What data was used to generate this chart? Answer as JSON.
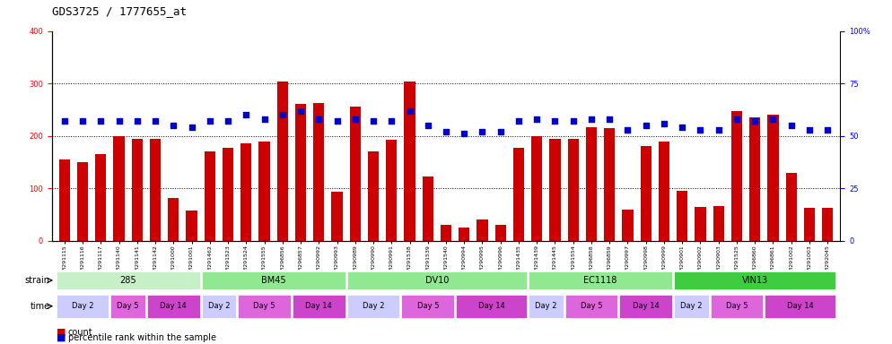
{
  "title": "GDS3725 / 1777655_at",
  "samples": [
    "GSM291115",
    "GSM291116",
    "GSM291117",
    "GSM291140",
    "GSM291141",
    "GSM291142",
    "GSM291000",
    "GSM291001",
    "GSM291462",
    "GSM291523",
    "GSM291524",
    "GSM291555",
    "GSM296856",
    "GSM296857",
    "GSM290992",
    "GSM290993",
    "GSM290989",
    "GSM290990",
    "GSM290991",
    "GSM291538",
    "GSM291539",
    "GSM291540",
    "GSM290994",
    "GSM290995",
    "GSM290996",
    "GSM291435",
    "GSM291439",
    "GSM291445",
    "GSM291554",
    "GSM296858",
    "GSM296859",
    "GSM290997",
    "GSM290998",
    "GSM290999",
    "GSM290901",
    "GSM290902",
    "GSM290903",
    "GSM291525",
    "GSM296860",
    "GSM296861",
    "GSM291002",
    "GSM291003",
    "GSM292045"
  ],
  "counts": [
    155,
    150,
    165,
    200,
    195,
    195,
    82,
    57,
    170,
    178,
    185,
    190,
    303,
    261,
    263,
    93,
    255,
    170,
    192,
    303,
    122,
    30,
    25,
    40,
    30,
    178,
    200,
    195,
    195,
    217,
    215,
    60,
    180,
    190,
    95,
    65,
    67,
    248,
    236,
    240,
    130,
    63,
    63
  ],
  "percentiles": [
    57,
    57,
    57,
    57,
    57,
    57,
    55,
    54,
    57,
    57,
    60,
    58,
    60,
    62,
    58,
    57,
    58,
    57,
    57,
    62,
    55,
    52,
    51,
    52,
    52,
    57,
    58,
    57,
    57,
    58,
    58,
    53,
    55,
    56,
    54,
    53,
    53,
    58,
    57,
    58,
    55,
    53,
    53
  ],
  "strains": [
    {
      "label": "285",
      "start": 0,
      "end": 8,
      "color": "#c8f0c8"
    },
    {
      "label": "BM45",
      "start": 8,
      "end": 16,
      "color": "#90e890"
    },
    {
      "label": "DV10",
      "start": 16,
      "end": 26,
      "color": "#90e890"
    },
    {
      "label": "EC1118",
      "start": 26,
      "end": 34,
      "color": "#90e890"
    },
    {
      "label": "VIN13",
      "start": 34,
      "end": 43,
      "color": "#40cc40"
    }
  ],
  "times": [
    {
      "label": "Day 2",
      "start": 0,
      "end": 3,
      "color": "#ccccff"
    },
    {
      "label": "Day 5",
      "start": 3,
      "end": 5,
      "color": "#dd66dd"
    },
    {
      "label": "Day 14",
      "start": 5,
      "end": 8,
      "color": "#cc44cc"
    },
    {
      "label": "Day 2",
      "start": 8,
      "end": 10,
      "color": "#ccccff"
    },
    {
      "label": "Day 5",
      "start": 10,
      "end": 13,
      "color": "#dd66dd"
    },
    {
      "label": "Day 14",
      "start": 13,
      "end": 16,
      "color": "#cc44cc"
    },
    {
      "label": "Day 2",
      "start": 16,
      "end": 19,
      "color": "#ccccff"
    },
    {
      "label": "Day 5",
      "start": 19,
      "end": 22,
      "color": "#dd66dd"
    },
    {
      "label": "Day 14",
      "start": 22,
      "end": 26,
      "color": "#cc44cc"
    },
    {
      "label": "Day 2",
      "start": 26,
      "end": 28,
      "color": "#ccccff"
    },
    {
      "label": "Day 5",
      "start": 28,
      "end": 31,
      "color": "#dd66dd"
    },
    {
      "label": "Day 14",
      "start": 31,
      "end": 34,
      "color": "#cc44cc"
    },
    {
      "label": "Day 2",
      "start": 34,
      "end": 36,
      "color": "#ccccff"
    },
    {
      "label": "Day 5",
      "start": 36,
      "end": 39,
      "color": "#dd66dd"
    },
    {
      "label": "Day 14",
      "start": 39,
      "end": 43,
      "color": "#cc44cc"
    }
  ],
  "bar_color": "#cc0000",
  "dot_color": "#0000cc",
  "ylim_left": [
    0,
    400
  ],
  "ylim_right": [
    0,
    100
  ],
  "yticks_left": [
    0,
    100,
    200,
    300,
    400
  ],
  "yticks_right": [
    0,
    25,
    50,
    75,
    100
  ],
  "ytick_labels_right": [
    "0",
    "25",
    "50",
    "75",
    "100%"
  ],
  "grid_values": [
    100,
    200,
    300
  ],
  "title_fontsize": 9,
  "tick_fontsize": 6,
  "legend_fontsize": 7
}
